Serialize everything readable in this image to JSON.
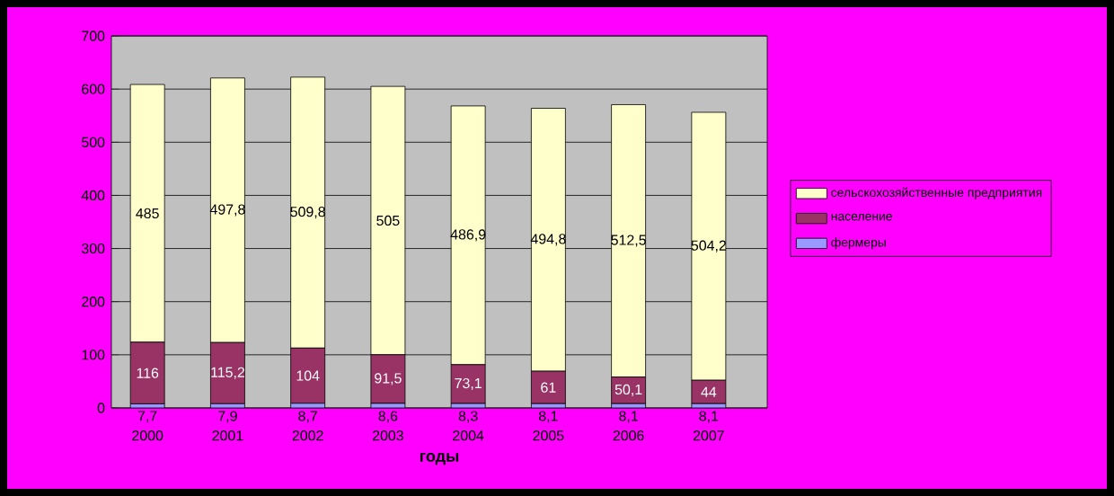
{
  "chart_data": {
    "type": "bar",
    "stacked": true,
    "xlabel": "годы",
    "categories": [
      "2000",
      "2001",
      "2002",
      "2003",
      "2004",
      "2005",
      "2006",
      "2007"
    ],
    "series": [
      {
        "name": "фермеры",
        "color": "#9999ff",
        "values": [
          7.7,
          7.9,
          8.7,
          8.6,
          8.3,
          8.1,
          8.1,
          8.1
        ],
        "value_labels": [
          "7,7",
          "7,9",
          "8,7",
          "8,6",
          "8,3",
          "8,1",
          "8,1",
          "8,1"
        ]
      },
      {
        "name": "население",
        "color": "#993366",
        "values": [
          116,
          115.2,
          104,
          91.5,
          73.1,
          61,
          50.1,
          44
        ],
        "value_labels": [
          "116",
          "115,2",
          "104",
          "91,5",
          "73,1",
          "61",
          "50,1",
          "44"
        ]
      },
      {
        "name": "сельскохозяйственные предприятия",
        "color": "#ffffcc",
        "values": [
          485,
          497.8,
          509.8,
          505,
          486.9,
          494.8,
          512.5,
          504.2
        ],
        "value_labels": [
          "485",
          "497,8",
          "509,8",
          "505",
          "486,9",
          "494,8",
          "512,5",
          "504,2"
        ]
      }
    ],
    "ylim": [
      0,
      700
    ],
    "yticks": [
      0,
      100,
      200,
      300,
      400,
      500,
      600,
      700
    ],
    "grid": "y",
    "legend": "right"
  }
}
